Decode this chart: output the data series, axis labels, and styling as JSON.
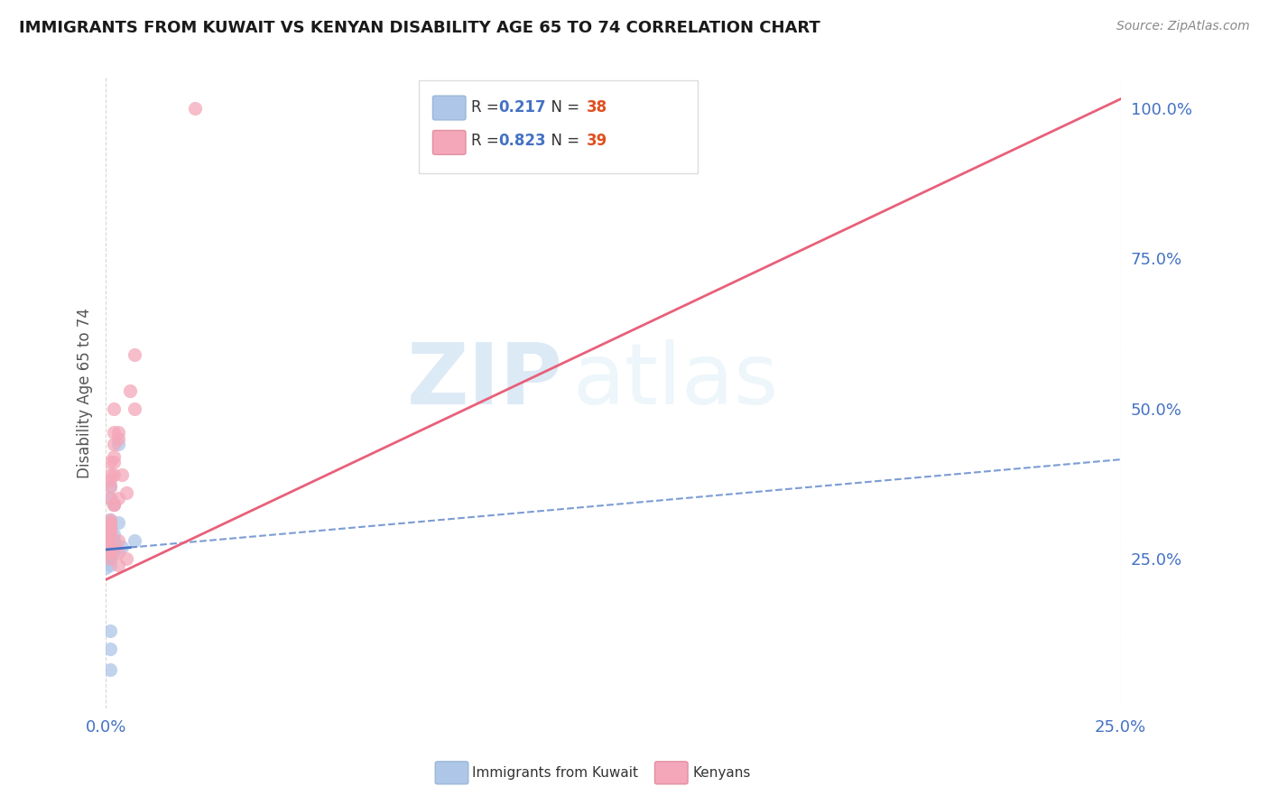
{
  "title": "IMMIGRANTS FROM KUWAIT VS KENYAN DISABILITY AGE 65 TO 74 CORRELATION CHART",
  "source": "Source: ZipAtlas.com",
  "ylabel": "Disability Age 65 to 74",
  "kuwait_color": "#aec6e8",
  "kenyan_color": "#f4a7b9",
  "kuwait_line_color": "#4472c4",
  "kenyan_line_color": "#e8607a",
  "watermark_zip": "ZIP",
  "watermark_atlas": "atlas",
  "kuwait_scatter_x": [
    0.0,
    0.001,
    0.0,
    0.001,
    0.002,
    0.001,
    0.001,
    0.002,
    0.0,
    0.001,
    0.001,
    0.002,
    0.001,
    0.001,
    0.0,
    0.001,
    0.002,
    0.001,
    0.002,
    0.001,
    0.001,
    0.002,
    0.001,
    0.001,
    0.001,
    0.003,
    0.001,
    0.002,
    0.001,
    0.0,
    0.001,
    0.003,
    0.007,
    0.001,
    0.004,
    0.001,
    0.001,
    0.001
  ],
  "kuwait_scatter_y": [
    0.285,
    0.295,
    0.275,
    0.31,
    0.29,
    0.305,
    0.265,
    0.275,
    0.29,
    0.35,
    0.37,
    0.34,
    0.3,
    0.26,
    0.25,
    0.315,
    0.26,
    0.29,
    0.28,
    0.3,
    0.26,
    0.27,
    0.25,
    0.255,
    0.26,
    0.44,
    0.27,
    0.28,
    0.24,
    0.235,
    0.26,
    0.31,
    0.28,
    0.26,
    0.27,
    0.13,
    0.1,
    0.065
  ],
  "kenyan_scatter_x": [
    0.0,
    0.001,
    0.0,
    0.001,
    0.001,
    0.001,
    0.001,
    0.001,
    0.001,
    0.001,
    0.001,
    0.002,
    0.001,
    0.001,
    0.001,
    0.001,
    0.002,
    0.001,
    0.001,
    0.002,
    0.001,
    0.002,
    0.002,
    0.003,
    0.002,
    0.003,
    0.002,
    0.003,
    0.002,
    0.003,
    0.003,
    0.003,
    0.004,
    0.005,
    0.005,
    0.007,
    0.006,
    0.007,
    0.022
  ],
  "kenyan_scatter_y": [
    0.285,
    0.295,
    0.275,
    0.31,
    0.3,
    0.265,
    0.275,
    0.29,
    0.305,
    0.35,
    0.37,
    0.34,
    0.26,
    0.25,
    0.315,
    0.26,
    0.42,
    0.39,
    0.38,
    0.44,
    0.41,
    0.46,
    0.5,
    0.45,
    0.39,
    0.35,
    0.41,
    0.46,
    0.34,
    0.28,
    0.24,
    0.26,
    0.39,
    0.36,
    0.25,
    0.5,
    0.53,
    0.59,
    1.0
  ],
  "kuwait_line_x": [
    0.0,
    0.25
  ],
  "kuwait_line_y": [
    0.265,
    0.415
  ],
  "kenyan_line_x": [
    0.0,
    0.25
  ],
  "kenyan_line_y": [
    0.215,
    1.015
  ],
  "xmin": 0.0,
  "xmax": 0.25,
  "ymin": 0.0,
  "ymax": 1.05,
  "ytick_vals": [
    0.25,
    0.5,
    0.75,
    1.0
  ],
  "ytick_labels": [
    "25.0%",
    "50.0%",
    "75.0%",
    "100.0%"
  ],
  "xtick_vals": [
    0.0,
    0.25
  ],
  "xtick_labels": [
    "0.0%",
    "25.0%"
  ],
  "r_kuwait": "0.217",
  "n_kuwait": "38",
  "r_kenyan": "0.823",
  "n_kenyan": "39"
}
